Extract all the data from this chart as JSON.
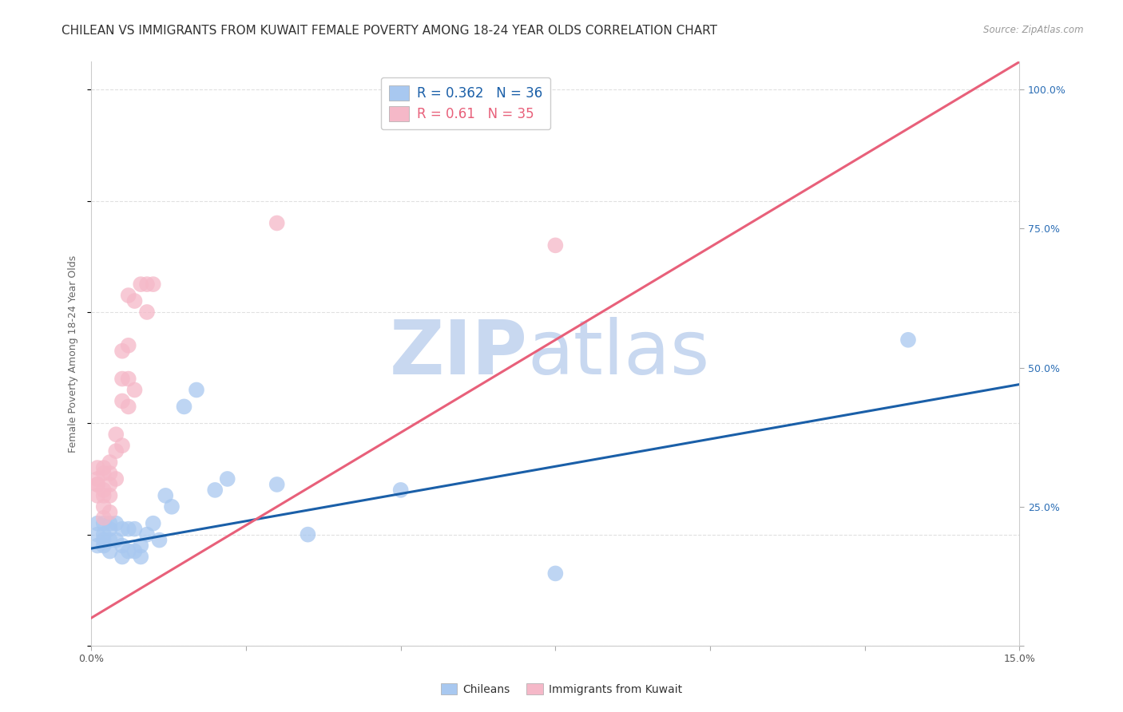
{
  "title": "CHILEAN VS IMMIGRANTS FROM KUWAIT FEMALE POVERTY AMONG 18-24 YEAR OLDS CORRELATION CHART",
  "source": "Source: ZipAtlas.com",
  "ylabel": "Female Poverty Among 18-24 Year Olds",
  "xlim": [
    0.0,
    0.15
  ],
  "ylim": [
    0.0,
    1.05
  ],
  "xticks": [
    0.0,
    0.025,
    0.05,
    0.075,
    0.1,
    0.125,
    0.15
  ],
  "xticklabels": [
    "0.0%",
    "",
    "",
    "",
    "",
    "",
    "15.0%"
  ],
  "yticks": [
    0.0,
    0.25,
    0.5,
    0.75,
    1.0
  ],
  "yticklabels": [
    "",
    "25.0%",
    "50.0%",
    "75.0%",
    "100.0%"
  ],
  "R_chilean": 0.362,
  "N_chilean": 36,
  "R_kuwait": 0.61,
  "N_kuwait": 35,
  "color_chilean": "#a8c8f0",
  "color_kuwait": "#f5b8c8",
  "line_color_chilean": "#1a5fa8",
  "line_color_kuwait": "#e8607a",
  "chilean_x": [
    0.001,
    0.001,
    0.001,
    0.002,
    0.002,
    0.002,
    0.002,
    0.003,
    0.003,
    0.003,
    0.003,
    0.004,
    0.004,
    0.005,
    0.005,
    0.005,
    0.006,
    0.006,
    0.007,
    0.007,
    0.008,
    0.008,
    0.009,
    0.01,
    0.011,
    0.012,
    0.013,
    0.015,
    0.017,
    0.02,
    0.022,
    0.03,
    0.035,
    0.05,
    0.075,
    0.132
  ],
  "chilean_y": [
    0.22,
    0.2,
    0.18,
    0.22,
    0.2,
    0.19,
    0.18,
    0.21,
    0.22,
    0.19,
    0.17,
    0.22,
    0.19,
    0.21,
    0.18,
    0.16,
    0.21,
    0.17,
    0.21,
    0.17,
    0.18,
    0.16,
    0.2,
    0.22,
    0.19,
    0.27,
    0.25,
    0.43,
    0.46,
    0.28,
    0.3,
    0.29,
    0.2,
    0.28,
    0.13,
    0.55
  ],
  "kuwait_x": [
    0.001,
    0.001,
    0.001,
    0.001,
    0.001,
    0.002,
    0.002,
    0.002,
    0.002,
    0.002,
    0.002,
    0.003,
    0.003,
    0.003,
    0.003,
    0.003,
    0.004,
    0.004,
    0.004,
    0.005,
    0.005,
    0.005,
    0.005,
    0.006,
    0.006,
    0.006,
    0.006,
    0.007,
    0.007,
    0.008,
    0.009,
    0.009,
    0.01,
    0.03,
    0.075
  ],
  "kuwait_y": [
    0.27,
    0.29,
    0.29,
    0.3,
    0.32,
    0.23,
    0.25,
    0.27,
    0.28,
    0.31,
    0.32,
    0.24,
    0.27,
    0.29,
    0.31,
    0.33,
    0.3,
    0.35,
    0.38,
    0.36,
    0.44,
    0.48,
    0.53,
    0.43,
    0.48,
    0.54,
    0.63,
    0.46,
    0.62,
    0.65,
    0.6,
    0.65,
    0.65,
    0.76,
    0.72
  ],
  "chilean_line_x": [
    0.0,
    0.15
  ],
  "chilean_line_y": [
    0.175,
    0.47
  ],
  "kuwait_line_x": [
    0.0,
    0.15
  ],
  "kuwait_line_y": [
    0.05,
    1.05
  ],
  "watermark_zip": "ZIP",
  "watermark_atlas": "atlas",
  "watermark_color_zip": "#c8d8f0",
  "watermark_color_atlas": "#c8d8f0",
  "background_color": "#ffffff",
  "grid_color": "#e0e0e0",
  "title_fontsize": 11,
  "axis_label_fontsize": 9,
  "tick_fontsize": 9,
  "legend_fontsize": 12
}
